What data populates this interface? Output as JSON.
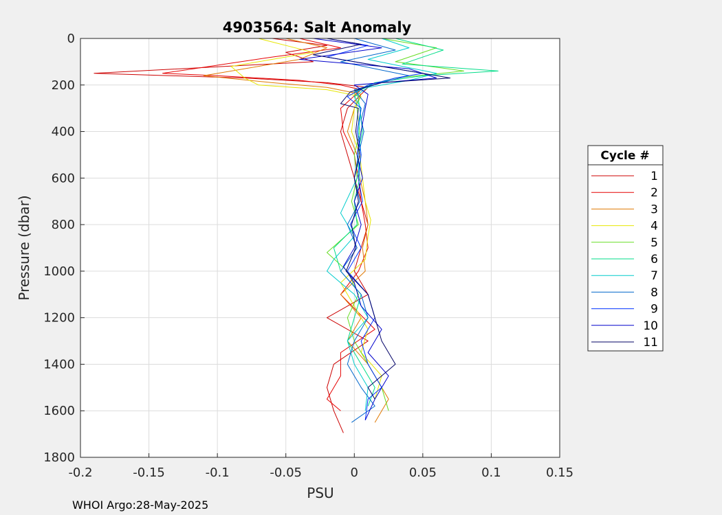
{
  "chart_data": {
    "type": "line",
    "title": "4903564: Salt Anomaly",
    "xlabel": "PSU",
    "ylabel": "Pressure (dbar)",
    "xlim": [
      -0.2,
      0.15
    ],
    "ylim": [
      0,
      1800
    ],
    "y_reversed": true,
    "grid": true,
    "xticks": [
      "-0.2",
      "-0.15",
      "-0.1",
      "-0.05",
      "0",
      "0.05",
      "0.1",
      "0.15"
    ],
    "yticks": [
      "0",
      "200",
      "400",
      "600",
      "800",
      "1000",
      "1200",
      "1400",
      "1600",
      "1800"
    ],
    "legend": {
      "title": "Cycle #",
      "placement": "outside-right"
    },
    "footer": "WHOI Argo:28-May-2025",
    "series": [
      {
        "name": "1",
        "color": "#cc0000",
        "points": [
          [
            -0.06,
            0
          ],
          [
            -0.02,
            30
          ],
          [
            -0.05,
            60
          ],
          [
            -0.03,
            100
          ],
          [
            -0.19,
            150
          ],
          [
            -0.08,
            170
          ],
          [
            -0.02,
            190
          ],
          [
            0.01,
            210
          ],
          [
            -0.005,
            300
          ],
          [
            -0.01,
            400
          ],
          [
            -0.005,
            500
          ],
          [
            0,
            600
          ],
          [
            0.005,
            700
          ],
          [
            0.01,
            800
          ],
          [
            0.005,
            900
          ],
          [
            0,
            1000
          ],
          [
            0.01,
            1100
          ],
          [
            -0.02,
            1200
          ],
          [
            0.01,
            1300
          ],
          [
            -0.015,
            1400
          ],
          [
            -0.02,
            1500
          ],
          [
            -0.015,
            1600
          ],
          [
            -0.008,
            1695
          ]
        ]
      },
      {
        "name": "2",
        "color": "#e60000",
        "points": [
          [
            -0.04,
            0
          ],
          [
            -0.01,
            40
          ],
          [
            -0.06,
            80
          ],
          [
            -0.14,
            150
          ],
          [
            -0.1,
            160
          ],
          [
            -0.04,
            180
          ],
          [
            -0.01,
            200
          ],
          [
            0.005,
            220
          ],
          [
            -0.01,
            300
          ],
          [
            -0.008,
            400
          ],
          [
            0,
            500
          ],
          [
            0.003,
            600
          ],
          [
            0.005,
            700
          ],
          [
            0.008,
            800
          ],
          [
            0.01,
            900
          ],
          [
            0.003,
            1000
          ],
          [
            -0.01,
            1100
          ],
          [
            0.015,
            1250
          ],
          [
            -0.01,
            1350
          ],
          [
            -0.01,
            1450
          ],
          [
            -0.02,
            1550
          ],
          [
            -0.01,
            1600
          ]
        ]
      },
      {
        "name": "3",
        "color": "#e07800",
        "points": [
          [
            -0.05,
            0
          ],
          [
            -0.02,
            40
          ],
          [
            -0.04,
            90
          ],
          [
            -0.11,
            160
          ],
          [
            -0.06,
            190
          ],
          [
            -0.02,
            210
          ],
          [
            0.005,
            240
          ],
          [
            0,
            300
          ],
          [
            -0.005,
            400
          ],
          [
            0.002,
            500
          ],
          [
            0.004,
            600
          ],
          [
            0.008,
            700
          ],
          [
            0.01,
            800
          ],
          [
            0.006,
            900
          ],
          [
            0.008,
            1000
          ],
          [
            -0.01,
            1100
          ],
          [
            0.005,
            1200
          ],
          [
            -0.005,
            1300
          ],
          [
            0.01,
            1400
          ],
          [
            0.025,
            1550
          ],
          [
            0.015,
            1650
          ]
        ]
      },
      {
        "name": "4",
        "color": "#e6e600",
        "points": [
          [
            -0.07,
            0
          ],
          [
            -0.05,
            30
          ],
          [
            -0.03,
            60
          ],
          [
            -0.09,
            120
          ],
          [
            -0.08,
            170
          ],
          [
            -0.07,
            200
          ],
          [
            -0.02,
            220
          ],
          [
            0.005,
            250
          ],
          [
            0,
            300
          ],
          [
            -0.002,
            400
          ],
          [
            0.004,
            500
          ],
          [
            0.006,
            600
          ],
          [
            0.008,
            700
          ],
          [
            0.012,
            780
          ],
          [
            0.01,
            850
          ],
          [
            0.008,
            950
          ],
          [
            -0.01,
            1050
          ],
          [
            0,
            1150
          ],
          [
            0.01,
            1250
          ],
          [
            0.005,
            1350
          ],
          [
            0.02,
            1450
          ],
          [
            0.015,
            1550
          ]
        ]
      },
      {
        "name": "5",
        "color": "#66dd22",
        "points": [
          [
            0.02,
            0
          ],
          [
            0.06,
            40
          ],
          [
            0.03,
            100
          ],
          [
            0.08,
            140
          ],
          [
            0.03,
            170
          ],
          [
            0.01,
            200
          ],
          [
            0,
            230
          ],
          [
            0.002,
            300
          ],
          [
            0.004,
            400
          ],
          [
            0,
            500
          ],
          [
            0.002,
            600
          ],
          [
            -0.002,
            700
          ],
          [
            0.003,
            800
          ],
          [
            -0.02,
            920
          ],
          [
            -0.005,
            1000
          ],
          [
            0.003,
            1100
          ],
          [
            -0.005,
            1200
          ],
          [
            0,
            1300
          ],
          [
            0.01,
            1400
          ],
          [
            0.02,
            1500
          ],
          [
            0.025,
            1600
          ]
        ]
      },
      {
        "name": "6",
        "color": "#00dd88",
        "points": [
          [
            0.03,
            0
          ],
          [
            0.065,
            50
          ],
          [
            0.035,
            110
          ],
          [
            0.105,
            140
          ],
          [
            0.05,
            160
          ],
          [
            0.015,
            190
          ],
          [
            0.002,
            230
          ],
          [
            0.004,
            300
          ],
          [
            0.006,
            400
          ],
          [
            0.002,
            500
          ],
          [
            0.004,
            600
          ],
          [
            0,
            700
          ],
          [
            0.002,
            800
          ],
          [
            -0.015,
            900
          ],
          [
            -0.01,
            1000
          ],
          [
            0.005,
            1100
          ],
          [
            0,
            1200
          ],
          [
            -0.005,
            1300
          ],
          [
            0.005,
            1400
          ],
          [
            0.015,
            1500
          ],
          [
            0.01,
            1580
          ]
        ]
      },
      {
        "name": "7",
        "color": "#00cccc",
        "points": [
          [
            0.02,
            0
          ],
          [
            0.04,
            40
          ],
          [
            0.01,
            90
          ],
          [
            0.06,
            150
          ],
          [
            0.04,
            180
          ],
          [
            0.01,
            210
          ],
          [
            0,
            250
          ],
          [
            0.005,
            300
          ],
          [
            0.003,
            400
          ],
          [
            0.005,
            500
          ],
          [
            0.002,
            600
          ],
          [
            -0.01,
            750
          ],
          [
            0,
            850
          ],
          [
            -0.015,
            950
          ],
          [
            -0.02,
            1000
          ],
          [
            0,
            1100
          ],
          [
            0.01,
            1200
          ],
          [
            -0.005,
            1300
          ],
          [
            0,
            1400
          ],
          [
            0.01,
            1500
          ],
          [
            0.008,
            1600
          ]
        ]
      },
      {
        "name": "8",
        "color": "#0066cc",
        "points": [
          [
            0,
            0
          ],
          [
            0.03,
            50
          ],
          [
            -0.01,
            100
          ],
          [
            0.04,
            160
          ],
          [
            0.02,
            190
          ],
          [
            0,
            220
          ],
          [
            0.008,
            280
          ],
          [
            0.005,
            350
          ],
          [
            0.007,
            400
          ],
          [
            0.003,
            500
          ],
          [
            0,
            600
          ],
          [
            0.004,
            700
          ],
          [
            -0.005,
            800
          ],
          [
            0.002,
            900
          ],
          [
            -0.01,
            1000
          ],
          [
            0.005,
            1100
          ],
          [
            0.01,
            1200
          ],
          [
            0,
            1300
          ],
          [
            -0.005,
            1400
          ],
          [
            0.005,
            1500
          ],
          [
            0.015,
            1580
          ],
          [
            -0.002,
            1650
          ]
        ]
      },
      {
        "name": "9",
        "color": "#0033ff",
        "points": [
          [
            -0.02,
            0
          ],
          [
            0.01,
            30
          ],
          [
            -0.02,
            80
          ],
          [
            0.05,
            150
          ],
          [
            0.03,
            170
          ],
          [
            0.01,
            200
          ],
          [
            -0.005,
            250
          ],
          [
            0.005,
            300
          ],
          [
            0.002,
            400
          ],
          [
            0.005,
            500
          ],
          [
            0.003,
            600
          ],
          [
            0.006,
            700
          ],
          [
            -0.003,
            800
          ],
          [
            0.005,
            900
          ],
          [
            -0.005,
            1000
          ],
          [
            0.01,
            1100
          ],
          [
            0.015,
            1200
          ],
          [
            0.005,
            1300
          ],
          [
            0.01,
            1400
          ],
          [
            0.02,
            1500
          ],
          [
            0.01,
            1550
          ],
          [
            0.008,
            1640
          ]
        ]
      },
      {
        "name": "10",
        "color": "#0000cc",
        "points": [
          [
            -0.03,
            0
          ],
          [
            0.02,
            40
          ],
          [
            -0.04,
            90
          ],
          [
            0.04,
            130
          ],
          [
            0.06,
            170
          ],
          [
            0,
            200
          ],
          [
            0.01,
            240
          ],
          [
            0.008,
            300
          ],
          [
            0.005,
            400
          ],
          [
            0.002,
            500
          ],
          [
            0.006,
            600
          ],
          [
            0,
            700
          ],
          [
            0.005,
            800
          ],
          [
            0,
            900
          ],
          [
            -0.008,
            980
          ],
          [
            0,
            1050
          ],
          [
            0.005,
            1150
          ],
          [
            0.02,
            1250
          ],
          [
            0.01,
            1350
          ],
          [
            0.025,
            1450
          ],
          [
            0.015,
            1550
          ],
          [
            0.008,
            1640
          ]
        ]
      },
      {
        "name": "11",
        "color": "#000066",
        "points": [
          [
            -0.02,
            0
          ],
          [
            0.005,
            25
          ],
          [
            -0.03,
            70
          ],
          [
            0.02,
            120
          ],
          [
            0.07,
            170
          ],
          [
            0.02,
            190
          ],
          [
            -0.003,
            230
          ],
          [
            -0.01,
            280
          ],
          [
            0.003,
            300
          ],
          [
            0.001,
            400
          ],
          [
            0.004,
            500
          ],
          [
            0,
            600
          ],
          [
            0.003,
            700
          ],
          [
            -0.002,
            800
          ],
          [
            0.001,
            900
          ],
          [
            -0.006,
            1000
          ],
          [
            0.01,
            1100
          ],
          [
            0.015,
            1200
          ],
          [
            0.02,
            1300
          ],
          [
            0.03,
            1400
          ],
          [
            0.01,
            1500
          ],
          [
            0.015,
            1550
          ]
        ]
      }
    ]
  }
}
